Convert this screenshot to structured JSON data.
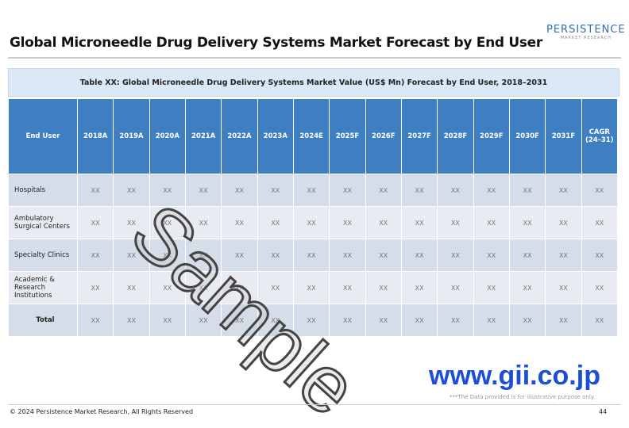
{
  "header": {
    "title": "Global Microneedle Drug Delivery Systems Market Forecast by End User",
    "logo": {
      "name": "PERSISTENCE",
      "tagline": "MARKET RESEARCH"
    }
  },
  "table": {
    "caption": "Table XX: Global Microneedle Drug Delivery Systems Market Value (US$ Mn) Forecast by End User, 2018–2031",
    "columns": [
      "End User",
      "2018A",
      "2019A",
      "2020A",
      "2021A",
      "2022A",
      "2023A",
      "2024E",
      "2025F",
      "2026F",
      "2027F",
      "2028F",
      "2029F",
      "2030F",
      "2031F",
      "CAGR (24–31)"
    ],
    "rows": [
      [
        "Hospitals",
        "XX",
        "XX",
        "XX",
        "XX",
        "XX",
        "XX",
        "XX",
        "XX",
        "XX",
        "XX",
        "XX",
        "XX",
        "XX",
        "XX",
        "XX"
      ],
      [
        "Ambulatory Surgical Centers",
        "XX",
        "XX",
        "XX",
        "XX",
        "XX",
        "XX",
        "XX",
        "XX",
        "XX",
        "XX",
        "XX",
        "XX",
        "XX",
        "XX",
        "XX"
      ],
      [
        "Specialty Clinics",
        "XX",
        "XX",
        "XX",
        "XX",
        "XX",
        "XX",
        "XX",
        "XX",
        "XX",
        "XX",
        "XX",
        "XX",
        "XX",
        "XX",
        "XX"
      ],
      [
        "Academic & Research Institutions",
        "XX",
        "XX",
        "XX",
        "XX",
        "XX",
        "XX",
        "XX",
        "XX",
        "XX",
        "XX",
        "XX",
        "XX",
        "XX",
        "XX",
        "XX"
      ],
      [
        "Total",
        "XX",
        "XX",
        "XX",
        "XX",
        "XX",
        "XX",
        "XX",
        "XX",
        "XX",
        "XX",
        "XX",
        "XX",
        "XX",
        "XX",
        "XX"
      ]
    ]
  },
  "watermark": "Sample",
  "source_site": "www.gii.co.jp",
  "disclaimer": "***The Data provided is for illustrative purpose only.",
  "footer": {
    "copyright": "© 2024 Persistence Market Research, All Rights Reserved",
    "page": "44"
  }
}
